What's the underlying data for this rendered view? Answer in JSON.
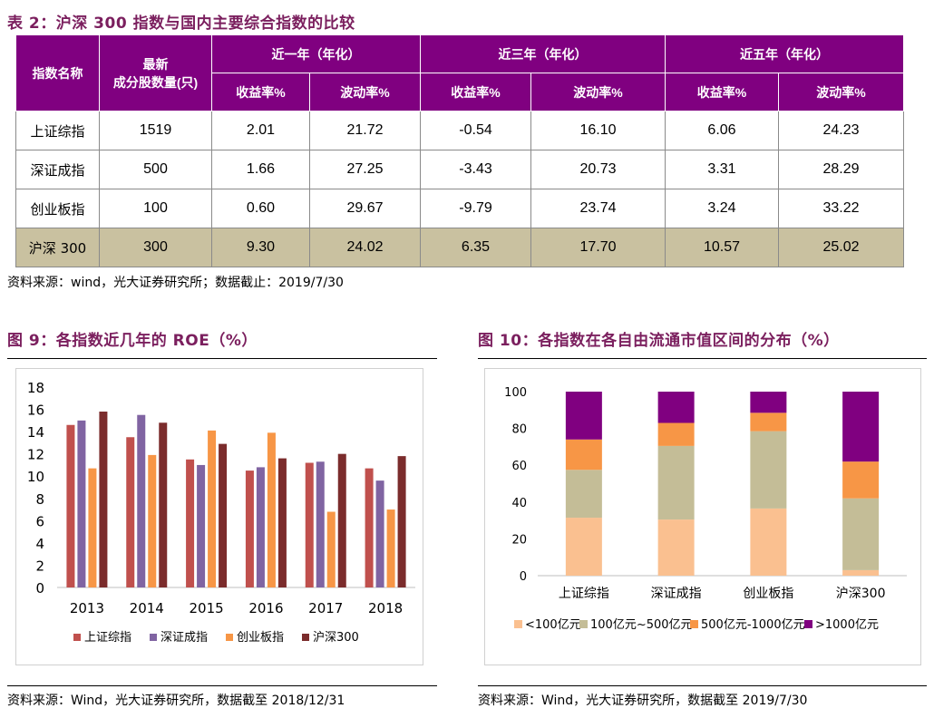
{
  "table": {
    "caption": "表 2：沪深 300 指数与国内主要综合指数的比较",
    "head": {
      "name_label": "指数名称",
      "count_label_1": "最新",
      "count_label_2": "成分股数量(只)",
      "period_1": "近一年（年化）",
      "period_3": "近三年（年化）",
      "period_5": "近五年（年化）",
      "ret_label": "收益率%",
      "vol_label": "波动率%"
    },
    "rows": [
      {
        "name": "上证综指",
        "count": "1519",
        "r1": "2.01",
        "v1": "21.72",
        "r3": "-0.54",
        "v3": "16.10",
        "r5": "6.06",
        "v5": "24.23"
      },
      {
        "name": "深证成指",
        "count": "500",
        "r1": "1.66",
        "v1": "27.25",
        "r3": "-3.43",
        "v3": "20.73",
        "r5": "3.31",
        "v5": "28.29"
      },
      {
        "name": "创业板指",
        "count": "100",
        "r1": "0.60",
        "v1": "29.67",
        "r3": "-9.79",
        "v3": "23.74",
        "r5": "3.24",
        "v5": "33.22"
      },
      {
        "name": "沪深 300",
        "count": "300",
        "r1": "9.30",
        "v1": "24.02",
        "r3": "6.35",
        "v3": "17.70",
        "r5": "10.57",
        "v5": "25.02"
      }
    ],
    "source": "资料来源：wind，光大证券研究所；数据截止：2019/7/30"
  },
  "fig9": {
    "caption": "图 9：各指数近几年的 ROE（%）",
    "source": "资料来源：Wind，光大证券研究所，数据截至 2018/12/31"
  },
  "fig10": {
    "caption": "图 10：各指数在各自由流通市值区间的分布（%）",
    "source": "资料来源：Wind，光大证券研究所，数据截至 2019/7/30"
  },
  "chart_data": [
    {
      "type": "bar",
      "categories": [
        "2013",
        "2014",
        "2015",
        "2016",
        "2017",
        "2018"
      ],
      "ylim": [
        0,
        18
      ],
      "yticks": [
        0,
        2,
        4,
        6,
        8,
        10,
        12,
        14,
        16,
        18
      ],
      "grid": false,
      "legend": "bottom",
      "series": [
        {
          "name": "上证综指",
          "color": "#c0504d",
          "values": [
            14.6,
            13.5,
            11.5,
            10.5,
            11.2,
            10.7
          ]
        },
        {
          "name": "深证成指",
          "color": "#8064a2",
          "values": [
            15.0,
            15.5,
            11.0,
            10.8,
            11.3,
            9.6
          ]
        },
        {
          "name": "创业板指",
          "color": "#f79646",
          "values": [
            10.7,
            11.9,
            14.1,
            13.9,
            6.8,
            7.0
          ]
        },
        {
          "name": "沪深300",
          "color": "#7b2c2c",
          "values": [
            15.8,
            14.8,
            12.9,
            11.6,
            12.0,
            11.8
          ]
        }
      ]
    },
    {
      "type": "bar",
      "stacked": true,
      "categories": [
        "上证综指",
        "深证成指",
        "创业板指",
        "沪深300"
      ],
      "ylim": [
        0,
        100
      ],
      "yticks": [
        0,
        20,
        40,
        60,
        80,
        100
      ],
      "grid": false,
      "legend": "bottom",
      "series": [
        {
          "name": "<100亿元",
          "color": "#fac090",
          "values": [
            31.5,
            30.5,
            36.5,
            3
          ]
        },
        {
          "name": "100亿元~500亿元",
          "color": "#c4bd97",
          "values": [
            26,
            40,
            42,
            39
          ]
        },
        {
          "name": "500亿元-1000亿元",
          "color": "#f79646",
          "values": [
            16.5,
            12.5,
            10,
            20
          ]
        },
        {
          "name": ">1000亿元",
          "color": "#800080",
          "values": [
            26,
            17,
            11.5,
            38
          ]
        }
      ]
    }
  ]
}
